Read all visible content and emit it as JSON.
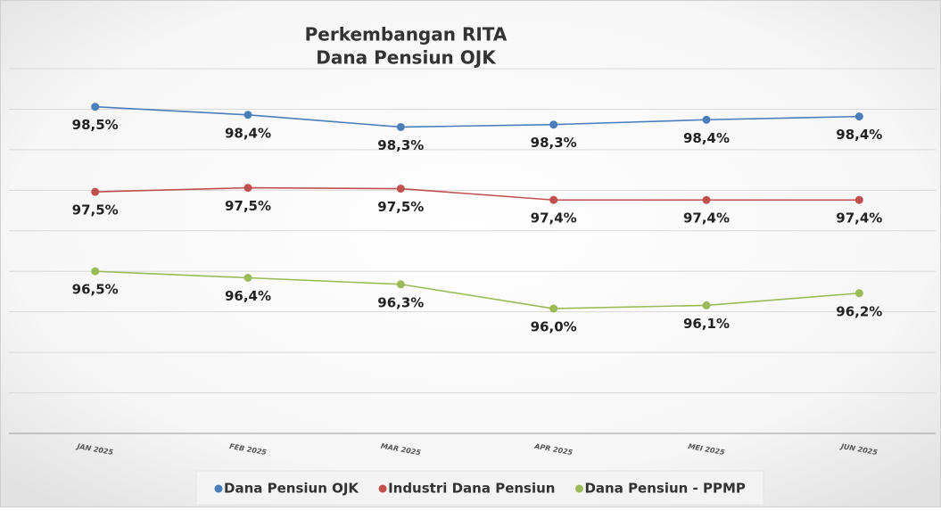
{
  "chart_data": {
    "type": "line",
    "title": [
      "Perkembangan RITA",
      "Dana Pensiun OJK"
    ],
    "categories": [
      "JAN 2025",
      "FEB 2025",
      "MAR 2025",
      "APR 2025",
      "MEI 2025",
      "JUN 2025"
    ],
    "series": [
      {
        "name": "Dana Pensiun OJK",
        "color": "#4a7ebb",
        "values": [
          98.53,
          98.43,
          98.28,
          98.31,
          98.37,
          98.41
        ],
        "value_labels": [
          "98,5%",
          "98,4%",
          "98,3%",
          "98,3%",
          "98,4%",
          "98,4%"
        ]
      },
      {
        "name": "Industri Dana Pensiun",
        "color": "#c0504d",
        "values": [
          97.48,
          97.53,
          97.52,
          97.38,
          97.38,
          97.38
        ],
        "value_labels": [
          "97,5%",
          "97,5%",
          "97,5%",
          "97,4%",
          "97,4%",
          "97,4%"
        ]
      },
      {
        "name": "Dana Pensiun - PPMP",
        "color": "#9bbb59",
        "values": [
          96.5,
          96.42,
          96.34,
          96.04,
          96.08,
          96.23
        ],
        "value_labels": [
          "96,5%",
          "96,4%",
          "96,3%",
          "96,0%",
          "96,1%",
          "96,2%"
        ]
      }
    ],
    "ylim": [
      94.5,
      99.0
    ],
    "yticks": [
      94.5,
      95,
      95.5,
      96,
      96.5,
      97,
      97.5,
      98,
      98.5,
      99
    ],
    "grid": true,
    "legend": "bottom"
  }
}
